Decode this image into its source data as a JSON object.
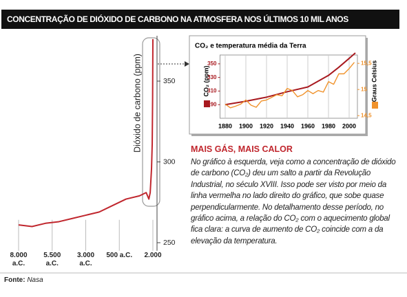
{
  "title": "CONCENTRAÇÃO DE DIÓXIDO DE CARBONO NA ATMOSFERA NOS ÚLTIMOS 10 MIL ANOS",
  "chart_data": [
    {
      "type": "line",
      "ylabel": "Dióxido de carbono (ppm)",
      "x": [
        -8000,
        -7000,
        -6000,
        -5000,
        -4000,
        -3000,
        -2000,
        -1000,
        0,
        1000,
        1500,
        1700,
        1800,
        1900,
        1950,
        1980,
        2000
      ],
      "series": [
        {
          "color": "#c0262d",
          "values": [
            261,
            260,
            262,
            263,
            265,
            267,
            269,
            273,
            277,
            279,
            281,
            277,
            281,
            296,
            311,
            339,
            376
          ]
        }
      ],
      "xlim": [
        -8000,
        2000
      ],
      "xticks": [
        {
          "value": -8000,
          "label": "8.000 a.C."
        },
        {
          "value": -5500,
          "label": "5.500 a.C."
        },
        {
          "value": -3000,
          "label": "3.000 a.C."
        },
        {
          "value": -500,
          "label": "500 a.C."
        },
        {
          "value": 2000,
          "label": "2.000"
        }
      ],
      "ylim": [
        245,
        380
      ],
      "yticks": [
        250,
        300,
        350
      ],
      "y_axis_side": "right",
      "grid": false
    },
    {
      "type": "line",
      "title": "CO₂ e temperatura média da Terra",
      "ylabel": "CO₂ (ppm)",
      "y2label": "Graus Celsius",
      "xlim": [
        1875,
        2008
      ],
      "xticks": [
        1880,
        1900,
        1920,
        1940,
        1960,
        1980,
        2000
      ],
      "ylim": [
        270,
        363
      ],
      "yticks": [
        290,
        310,
        330,
        350
      ],
      "y2lim": [
        14.45,
        15.66
      ],
      "y2ticks": [
        {
          "value": 15.5,
          "label": "15,5"
        },
        15,
        {
          "value": 14.5,
          "label": "14,5"
        }
      ],
      "grid": true,
      "series": [
        {
          "color": "#a8191f",
          "x": [
            1880,
            1900,
            1920,
            1940,
            1960,
            1980,
            1990,
            2000,
            2006
          ],
          "values": [
            290,
            295,
            301,
            309,
            316,
            333,
            345,
            358,
            366
          ]
        },
        {
          "color": "#f0922b",
          "axis": "y2",
          "x": [
            1880,
            1885,
            1890,
            1895,
            1900,
            1905,
            1910,
            1915,
            1920,
            1925,
            1930,
            1935,
            1940,
            1945,
            1950,
            1955,
            1960,
            1965,
            1970,
            1975,
            1980,
            1985,
            1990,
            1995,
            2000,
            2005
          ],
          "values": [
            14.72,
            14.65,
            14.68,
            14.72,
            14.8,
            14.7,
            14.66,
            14.78,
            14.8,
            14.85,
            14.9,
            14.88,
            15.02,
            14.98,
            14.86,
            14.9,
            14.98,
            14.92,
            14.98,
            14.95,
            15.15,
            15.1,
            15.3,
            15.3,
            15.4,
            15.52
          ]
        }
      ]
    }
  ],
  "note": {
    "heading": "MAIS GÁS, MAIS CALOR",
    "text": "No gráfico à esquerda, veja como a concentração de dióxido de carbono (CO₂) deu um salto a partir da Revolução Industrial, no século XVIII. Isso pode ser visto por meio da linha vermelha no lado direito do gráfico, que sobe quase perpendicularmente. No detalhamento desse período, no gráfico acima, a relação do CO₂ com o aquecimento global fica clara: a curva de aumento de CO₂ coincide com a da elevação da temperatura."
  },
  "source": {
    "label": "Fonte:",
    "text": "Nasa"
  }
}
